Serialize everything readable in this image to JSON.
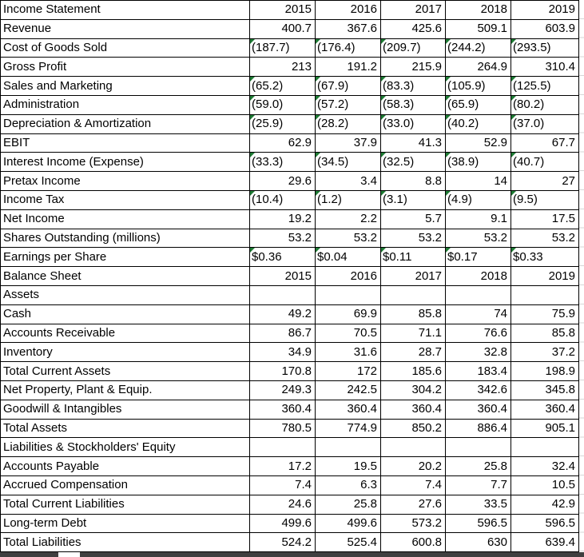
{
  "sheet": {
    "description": "Financial statements spreadsheet",
    "rows": [
      {
        "label": "Income Statement",
        "values": [
          "2015",
          "2016",
          "2017",
          "2018",
          "2019"
        ],
        "text_cells": false
      },
      {
        "label": "Revenue",
        "values": [
          "400.7",
          "367.6",
          "425.6",
          "509.1",
          "603.9"
        ],
        "text_cells": false
      },
      {
        "label": "Cost of Goods Sold",
        "values": [
          "(187.7)",
          "(176.4)",
          "(209.7)",
          "(244.2)",
          "(293.5)"
        ],
        "text_cells": true
      },
      {
        "label": "Gross Profit",
        "values": [
          "213",
          "191.2",
          "215.9",
          "264.9",
          "310.4"
        ],
        "text_cells": false
      },
      {
        "label": "Sales and Marketing",
        "values": [
          "(65.2)",
          "(67.9)",
          "(83.3)",
          "(105.9)",
          "(125.5)"
        ],
        "text_cells": true
      },
      {
        "label": "Administration",
        "values": [
          "(59.0)",
          "(57.2)",
          "(58.3)",
          "(65.9)",
          "(80.2)"
        ],
        "text_cells": true
      },
      {
        "label": "Depreciation & Amortization",
        "values": [
          "(25.9)",
          "(28.2)",
          "(33.0)",
          "(40.2)",
          "(37.0)"
        ],
        "text_cells": true
      },
      {
        "label": "EBIT",
        "values": [
          "62.9",
          "37.9",
          "41.3",
          "52.9",
          "67.7"
        ],
        "text_cells": false
      },
      {
        "label": "Interest Income (Expense)",
        "values": [
          "(33.3)",
          "(34.5)",
          "(32.5)",
          "(38.9)",
          "(40.7)"
        ],
        "text_cells": true
      },
      {
        "label": "Pretax Income",
        "values": [
          "29.6",
          "3.4",
          "8.8",
          "14",
          "27"
        ],
        "text_cells": false
      },
      {
        "label": "Income Tax",
        "values": [
          "(10.4)",
          "(1.2)",
          "(3.1)",
          "(4.9)",
          "(9.5)"
        ],
        "text_cells": true
      },
      {
        "label": "Net Income",
        "values": [
          "19.2",
          "2.2",
          "5.7",
          "9.1",
          "17.5"
        ],
        "text_cells": false
      },
      {
        "label": "Shares Outstanding (millions)",
        "values": [
          "53.2",
          "53.2",
          "53.2",
          "53.2",
          "53.2"
        ],
        "text_cells": false
      },
      {
        "label": "Earnings per Share",
        "values": [
          "$0.36",
          "$0.04",
          "$0.11",
          "$0.17",
          "$0.33"
        ],
        "text_cells": true
      },
      {
        "label": "Balance Sheet",
        "values": [
          "2015",
          "2016",
          "2017",
          "2018",
          "2019"
        ],
        "text_cells": false
      },
      {
        "label": "Assets",
        "values": [
          "",
          "",
          "",
          "",
          ""
        ],
        "text_cells": false
      },
      {
        "label": "Cash",
        "values": [
          "49.2",
          "69.9",
          "85.8",
          "74",
          "75.9"
        ],
        "text_cells": false
      },
      {
        "label": "Accounts Receivable",
        "values": [
          "86.7",
          "70.5",
          "71.1",
          "76.6",
          "85.8"
        ],
        "text_cells": false
      },
      {
        "label": "Inventory",
        "values": [
          "34.9",
          "31.6",
          "28.7",
          "32.8",
          "37.2"
        ],
        "text_cells": false
      },
      {
        "label": "Total Current Assets",
        "values": [
          "170.8",
          "172",
          "185.6",
          "183.4",
          "198.9"
        ],
        "text_cells": false
      },
      {
        "label": "Net Property, Plant & Equip.",
        "values": [
          "249.3",
          "242.5",
          "304.2",
          "342.6",
          "345.8"
        ],
        "text_cells": false
      },
      {
        "label": "Goodwill & Intangibles",
        "values": [
          "360.4",
          "360.4",
          "360.4",
          "360.4",
          "360.4"
        ],
        "text_cells": false
      },
      {
        "label": "Total Assets",
        "values": [
          "780.5",
          "774.9",
          "850.2",
          "886.4",
          "905.1"
        ],
        "text_cells": false
      },
      {
        "label": "Liabilities & Stockholders' Equity",
        "values": [
          "",
          "",
          "",
          "",
          ""
        ],
        "text_cells": false
      },
      {
        "label": "Accounts Payable",
        "values": [
          "17.2",
          "19.5",
          "20.2",
          "25.8",
          "32.4"
        ],
        "text_cells": false
      },
      {
        "label": "Accrued Compensation",
        "values": [
          "7.4",
          "6.3",
          "7.4",
          "7.7",
          "10.5"
        ],
        "text_cells": false
      },
      {
        "label": "Total Current Liabilities",
        "values": [
          "24.6",
          "25.8",
          "27.6",
          "33.5",
          "42.9"
        ],
        "text_cells": false
      },
      {
        "label": "Long-term Debt",
        "values": [
          "499.6",
          "499.6",
          "573.2",
          "596.5",
          "596.5"
        ],
        "text_cells": false
      },
      {
        "label": "Total Liabilities",
        "values": [
          "524.2",
          "525.4",
          "600.8",
          "630",
          "639.4"
        ],
        "text_cells": false
      }
    ],
    "icons": {
      "error_indicator": "green-triangle-icon"
    },
    "colors": {
      "border": "#000000",
      "text": "#000000",
      "background": "#ffffff",
      "error_indicator": "#1E7B34",
      "gridline": "#d6d6d6",
      "bottom_bar": "#3f3f3f"
    }
  }
}
